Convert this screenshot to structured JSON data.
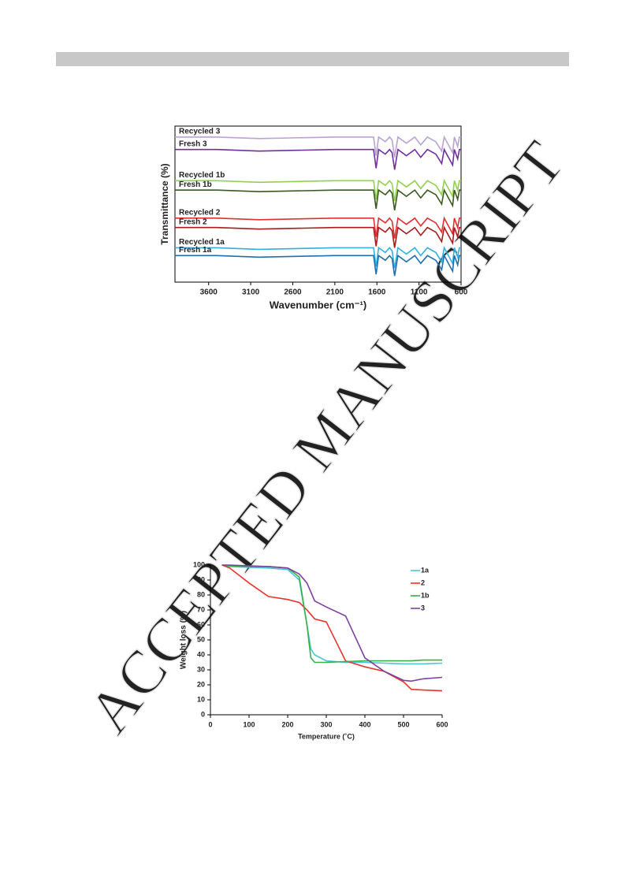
{
  "watermark": "ACCEPTED MANUSCRIPT",
  "chart_data": [
    {
      "type": "line",
      "xlabel": "Wavenumber (cm⁻¹)",
      "ylabel": "Transmittance (%)",
      "xlim": [
        4000,
        600
      ],
      "xticks": [
        3600,
        3100,
        2600,
        2100,
        1600,
        1100,
        600
      ],
      "ylim": [
        0,
        100
      ],
      "x": [
        4000,
        3500,
        3000,
        2100,
        1700,
        1640,
        1610,
        1580,
        1500,
        1450,
        1420,
        1390,
        1350,
        1250,
        1150,
        1080,
        1000,
        900,
        830,
        800,
        700,
        680,
        640,
        620,
        600
      ],
      "series": [
        {
          "name": "Recycled 3",
          "color": "#b9a3d3",
          "values": [
            93,
            93,
            92,
            93,
            93,
            93,
            81,
            93,
            90,
            93,
            91,
            80,
            93,
            89,
            93,
            88,
            93,
            90,
            84,
            93,
            83,
            93,
            87,
            93,
            93
          ]
        },
        {
          "name": "Fresh 3",
          "color": "#7030a0",
          "values": [
            85,
            85,
            84,
            85,
            85,
            85,
            73,
            85,
            82,
            85,
            83,
            72,
            85,
            81,
            85,
            80,
            85,
            82,
            76,
            85,
            75,
            85,
            79,
            85,
            85
          ]
        },
        {
          "name": "Recycled 1b",
          "color": "#92d050",
          "values": [
            65,
            65,
            64,
            65,
            65,
            65,
            53,
            65,
            62,
            65,
            63,
            52,
            65,
            61,
            65,
            60,
            65,
            62,
            56,
            65,
            55,
            65,
            59,
            65,
            65
          ]
        },
        {
          "name": "Fresh 1b",
          "color": "#3a5a1e",
          "values": [
            59,
            59,
            58,
            59,
            59,
            59,
            47,
            59,
            56,
            59,
            57,
            46,
            59,
            55,
            59,
            54,
            59,
            56,
            50,
            59,
            49,
            59,
            53,
            59,
            59
          ]
        },
        {
          "name": "Recycled 2",
          "color": "#e03030",
          "values": [
            41,
            41,
            40,
            41,
            41,
            41,
            29,
            41,
            38,
            41,
            39,
            28,
            41,
            37,
            41,
            36,
            41,
            38,
            32,
            41,
            31,
            41,
            35,
            41,
            41
          ]
        },
        {
          "name": "Fresh 2",
          "color": "#a81c1c",
          "values": [
            35,
            35,
            34,
            35,
            35,
            35,
            23,
            35,
            32,
            35,
            33,
            22,
            35,
            31,
            35,
            30,
            35,
            32,
            26,
            35,
            25,
            35,
            29,
            35,
            35
          ]
        },
        {
          "name": "Recycled 1a",
          "color": "#30b0e0",
          "values": [
            22,
            22,
            21,
            22,
            22,
            22,
            10,
            22,
            19,
            22,
            20,
            9,
            22,
            18,
            22,
            17,
            22,
            19,
            13,
            22,
            12,
            22,
            16,
            22,
            22
          ]
        },
        {
          "name": "Fresh 1a",
          "color": "#1f6fb0",
          "values": [
            17,
            17,
            16,
            17,
            17,
            17,
            5,
            17,
            14,
            17,
            15,
            4,
            17,
            13,
            17,
            12,
            17,
            14,
            8,
            17,
            7,
            17,
            11,
            17,
            17
          ]
        }
      ]
    },
    {
      "type": "line",
      "xlabel": "Temperature (˚C)",
      "ylabel": "Weight loss (%)",
      "xlim": [
        0,
        600
      ],
      "xticks": [
        0,
        100,
        200,
        300,
        400,
        500,
        600
      ],
      "ylim": [
        0,
        100
      ],
      "yticks": [
        0,
        10,
        20,
        30,
        40,
        50,
        60,
        70,
        80,
        90,
        100
      ],
      "legend": "upper right",
      "x": [
        30,
        50,
        100,
        150,
        200,
        230,
        250,
        260,
        270,
        300,
        350,
        400,
        450,
        500,
        520,
        550,
        600
      ],
      "series": [
        {
          "name": "1a",
          "color": "#4bc4d8",
          "values": [
            100,
            99,
            98.5,
            98,
            97,
            90,
            60,
            44,
            40,
            36,
            35,
            35,
            34.5,
            34,
            34,
            34,
            34.5
          ]
        },
        {
          "name": "2",
          "color": "#e8342c",
          "values": [
            100,
            98,
            88,
            79,
            77,
            75,
            70,
            67,
            64,
            62,
            36,
            32,
            29,
            22,
            17,
            16.5,
            16
          ]
        },
        {
          "name": "1b",
          "color": "#36b04a",
          "values": [
            100,
            99.5,
            99,
            99,
            98,
            92,
            60,
            38,
            35,
            35,
            35.5,
            36,
            36,
            36,
            36,
            36.5,
            36.5
          ]
        },
        {
          "name": "3",
          "color": "#7f3f9f",
          "values": [
            100,
            100,
            99.5,
            99,
            98,
            94,
            88,
            82,
            76,
            72,
            66,
            38,
            29,
            23,
            22.5,
            24,
            25
          ]
        }
      ]
    }
  ]
}
